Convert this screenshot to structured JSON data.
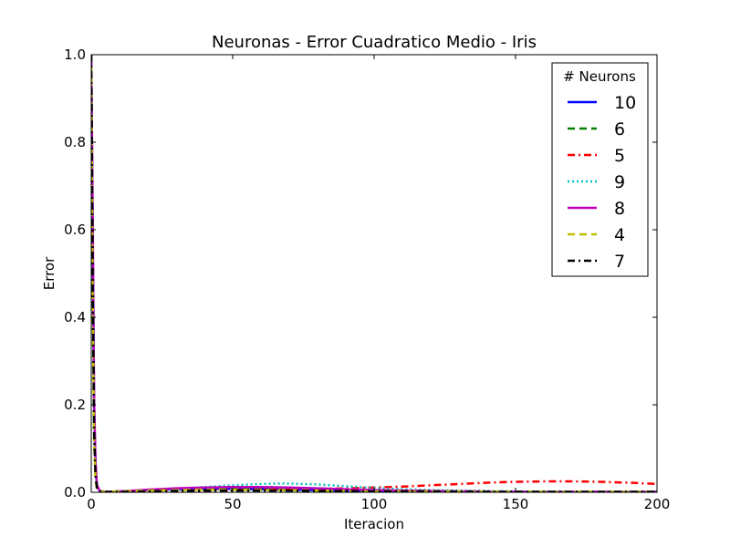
{
  "chart_data": {
    "type": "line",
    "title": "Neuronas - Error Cuadratico Medio - Iris",
    "xlabel": "Iteracion",
    "ylabel": "Error",
    "xlim": [
      0,
      200
    ],
    "ylim": [
      0,
      1.0
    ],
    "xticks": [
      0,
      50,
      100,
      150,
      200
    ],
    "yticks": [
      0.0,
      0.2,
      0.4,
      0.6,
      0.8,
      1.0
    ],
    "xtick_labels": [
      "0",
      "50",
      "100",
      "150",
      "200"
    ],
    "ytick_labels": [
      "0.0",
      "0.2",
      "0.4",
      "0.6",
      "0.8",
      "1.0"
    ],
    "grid": false,
    "legend": {
      "title": "# Neurons",
      "placement": "top-right"
    },
    "series": [
      {
        "name": "10",
        "color": "#0000ff",
        "style": "solid",
        "x": [
          0,
          0.5,
          1,
          1.5,
          2,
          3,
          5,
          10,
          20,
          30,
          40,
          50,
          60,
          70,
          80,
          90,
          100,
          120,
          150,
          200
        ],
        "y": [
          1.0,
          0.6,
          0.2,
          0.06,
          0.015,
          0.003,
          0.001,
          0.002,
          0.005,
          0.007,
          0.008,
          0.008,
          0.007,
          0.006,
          0.005,
          0.004,
          0.003,
          0.002,
          0.001,
          0.001
        ]
      },
      {
        "name": "6",
        "color": "#008000",
        "style": "dashed",
        "x": [
          0,
          0.5,
          1,
          1.5,
          2,
          3,
          5,
          10,
          20,
          30,
          40,
          50,
          60,
          70,
          80,
          90,
          100,
          120,
          150,
          200
        ],
        "y": [
          1.0,
          0.5,
          0.15,
          0.04,
          0.01,
          0.003,
          0.001,
          0.002,
          0.004,
          0.006,
          0.007,
          0.007,
          0.006,
          0.005,
          0.004,
          0.003,
          0.002,
          0.002,
          0.001,
          0.001
        ]
      },
      {
        "name": "5",
        "color": "#ff0000",
        "style": "dashdot",
        "x": [
          0,
          0.5,
          1,
          1.5,
          2,
          3,
          5,
          10,
          20,
          30,
          40,
          50,
          60,
          70,
          80,
          90,
          100,
          110,
          120,
          130,
          140,
          150,
          160,
          170,
          180,
          190,
          200
        ],
        "y": [
          1.0,
          0.55,
          0.18,
          0.05,
          0.012,
          0.003,
          0.001,
          0.001,
          0.002,
          0.003,
          0.004,
          0.005,
          0.006,
          0.007,
          0.008,
          0.009,
          0.011,
          0.013,
          0.016,
          0.019,
          0.022,
          0.024,
          0.025,
          0.025,
          0.024,
          0.022,
          0.019
        ]
      },
      {
        "name": "9",
        "color": "#00bfbf",
        "style": "dotted",
        "x": [
          0,
          0.5,
          1,
          1.5,
          2,
          3,
          5,
          10,
          20,
          30,
          40,
          50,
          60,
          65,
          70,
          80,
          90,
          100,
          110,
          120,
          150,
          200
        ],
        "y": [
          1.0,
          0.6,
          0.2,
          0.06,
          0.015,
          0.003,
          0.001,
          0.002,
          0.005,
          0.008,
          0.012,
          0.016,
          0.019,
          0.02,
          0.02,
          0.018,
          0.014,
          0.01,
          0.007,
          0.005,
          0.002,
          0.001
        ]
      },
      {
        "name": "8",
        "color": "#bf00bf",
        "style": "solid",
        "x": [
          0,
          0.5,
          1,
          1.5,
          2,
          3,
          5,
          10,
          20,
          30,
          40,
          50,
          55,
          60,
          70,
          80,
          90,
          100,
          120,
          150,
          200
        ],
        "y": [
          1.0,
          0.65,
          0.22,
          0.07,
          0.017,
          0.003,
          0.001,
          0.002,
          0.006,
          0.009,
          0.011,
          0.012,
          0.012,
          0.012,
          0.011,
          0.009,
          0.007,
          0.005,
          0.003,
          0.001,
          0.001
        ]
      },
      {
        "name": "4",
        "color": "#bfbf00",
        "style": "dashed",
        "x": [
          0,
          0.5,
          1,
          1.5,
          2,
          3,
          5,
          10,
          20,
          30,
          40,
          50,
          60,
          70,
          80,
          90,
          100,
          120,
          150,
          200
        ],
        "y": [
          1.0,
          0.45,
          0.12,
          0.03,
          0.008,
          0.002,
          0.001,
          0.002,
          0.004,
          0.005,
          0.006,
          0.006,
          0.005,
          0.005,
          0.004,
          0.003,
          0.002,
          0.002,
          0.001,
          0.001
        ]
      },
      {
        "name": "7",
        "color": "#000000",
        "style": "dashdot",
        "x": [
          0,
          0.5,
          1,
          1.5,
          2,
          3,
          5,
          10,
          20,
          30,
          40,
          50,
          60,
          70,
          80,
          90,
          100,
          120,
          150,
          200
        ],
        "y": [
          1.0,
          0.5,
          0.14,
          0.04,
          0.01,
          0.002,
          0.001,
          0.001,
          0.002,
          0.003,
          0.004,
          0.004,
          0.004,
          0.004,
          0.003,
          0.003,
          0.002,
          0.002,
          0.001,
          0.001
        ]
      }
    ]
  }
}
